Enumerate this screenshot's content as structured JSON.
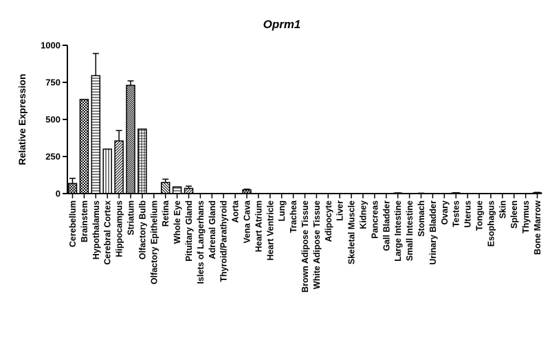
{
  "chart_data": {
    "type": "bar",
    "title": "Oprm1",
    "xlabel": "",
    "ylabel": "Relative Expression",
    "ylim": [
      0,
      1000
    ],
    "yticks": [
      0,
      250,
      500,
      750,
      1000
    ],
    "grid": false,
    "legend": "none",
    "categories": [
      "Cerebellum",
      "Brainstem",
      "Hypothalamus",
      "Cerebral Cortex",
      "Hippocampus",
      "Striatum",
      "Olfactory Bulb",
      "Olfactory Epithelium",
      "Retina",
      "Whole Eye",
      "Pituitary Gland",
      "Islets of Langerhans",
      "Adrenal Gland",
      "Thyroid/Parathyroid",
      "Aorta",
      "Vena Cava",
      "Heart Atrium",
      "Heart Ventricle",
      "Lung",
      "Trachea",
      "Brown Adipose Tissue",
      "White Adipose Tissue",
      "Adipocyte",
      "Liver",
      "Skeletal Muscle",
      "Kidney",
      "Pancreas",
      "Gall Bladder",
      "Large Intestine",
      "Small Intestine",
      "Stomach",
      "Urinary Bladder",
      "Ovary",
      "Testes",
      "Uterus",
      "Tongue",
      "Esophagus",
      "Skin",
      "Spleen",
      "Thymus",
      "Bone Marrow"
    ],
    "values": [
      68,
      635,
      795,
      300,
      355,
      730,
      435,
      0,
      75,
      45,
      35,
      0,
      0,
      0,
      0,
      25,
      0,
      0,
      0,
      0,
      0,
      0,
      0,
      0,
      0,
      0,
      0,
      0,
      3,
      0,
      2,
      0,
      0,
      4,
      0,
      0,
      0,
      0,
      0,
      0,
      5
    ],
    "errors": [
      35,
      0,
      150,
      0,
      70,
      30,
      0,
      0,
      22,
      0,
      15,
      0,
      0,
      0,
      0,
      5,
      0,
      0,
      0,
      0,
      0,
      0,
      0,
      0,
      0,
      0,
      0,
      0,
      2,
      0,
      1,
      0,
      0,
      2,
      0,
      0,
      0,
      0,
      0,
      0,
      3
    ],
    "patterns": [
      "crosshatch",
      "checker",
      "hlines",
      "vlines",
      "diag",
      "diag-dense",
      "grid",
      "blank",
      "diag-rev",
      "hlines",
      "diag",
      "blank",
      "blank",
      "blank",
      "blank",
      "crosshatch",
      "blank",
      "blank",
      "blank",
      "blank",
      "blank",
      "blank",
      "blank",
      "blank",
      "blank",
      "blank",
      "blank",
      "blank",
      "blank",
      "blank",
      "blank",
      "blank",
      "blank",
      "blank",
      "blank",
      "blank",
      "blank",
      "blank",
      "blank",
      "blank",
      "blank"
    ]
  }
}
